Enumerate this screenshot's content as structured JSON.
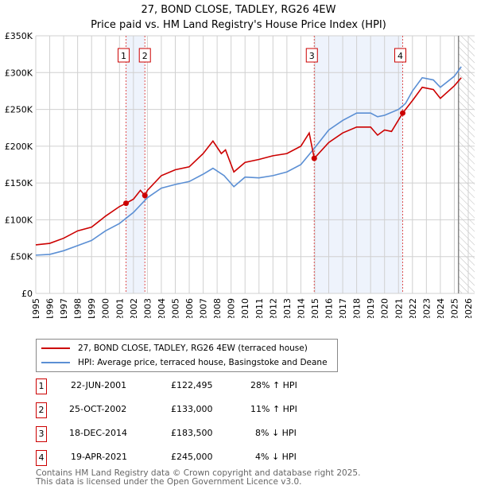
{
  "chart_data": {
    "type": "line",
    "title": "27, BOND CLOSE, TADLEY, RG26 4EW",
    "subtitle": "Price paid vs. HM Land Registry's House Price Index (HPI)",
    "xlim": [
      1995,
      2026
    ],
    "ylim": [
      0,
      350000
    ],
    "x_ticks": [
      "1995",
      "1996",
      "1997",
      "1998",
      "1999",
      "2000",
      "2001",
      "2002",
      "2003",
      "2004",
      "2005",
      "2006",
      "2007",
      "2008",
      "2009",
      "2010",
      "2011",
      "2012",
      "2013",
      "2014",
      "2015",
      "2016",
      "2017",
      "2018",
      "2019",
      "2020",
      "2021",
      "2022",
      "2023",
      "2024",
      "2025",
      "2026"
    ],
    "y_ticks": [
      {
        "v": 0,
        "label": "£0"
      },
      {
        "v": 50000,
        "label": "£50K"
      },
      {
        "v": 100000,
        "label": "£100K"
      },
      {
        "v": 150000,
        "label": "£150K"
      },
      {
        "v": 200000,
        "label": "£200K"
      },
      {
        "v": 250000,
        "label": "£250K"
      },
      {
        "v": 300000,
        "label": "£300K"
      },
      {
        "v": 350000,
        "label": "£350K"
      }
    ],
    "grid": true,
    "series": [
      {
        "name": "27, BOND CLOSE, TADLEY, RG26 4EW (terraced house)",
        "color": "#cc0000",
        "x": [
          1995,
          1996,
          1997,
          1998,
          1999,
          2000,
          2001,
          2001.47,
          2002,
          2002.5,
          2002.82,
          2003,
          2004,
          2005,
          2006,
          2007,
          2007.7,
          2008.3,
          2008.6,
          2009.2,
          2010,
          2011,
          2012,
          2013,
          2014,
          2014.6,
          2014.96,
          2016,
          2017,
          2018,
          2019,
          2019.5,
          2020,
          2020.5,
          2021.3,
          2022,
          2022.7,
          2023.5,
          2024,
          2025,
          2025.5
        ],
        "y": [
          66000,
          68000,
          75000,
          85000,
          90000,
          105000,
          118000,
          122495,
          128000,
          140000,
          133000,
          140000,
          160000,
          168000,
          172000,
          190000,
          207000,
          190000,
          195000,
          165000,
          178000,
          182000,
          187000,
          190000,
          200000,
          218000,
          183500,
          205000,
          218000,
          226000,
          226000,
          215000,
          222000,
          220000,
          245000,
          262000,
          280000,
          277000,
          265000,
          282000,
          293000
        ]
      },
      {
        "name": "HPI: Average price, terraced house, Basingstoke and Deane",
        "color": "#5b8fd4",
        "x": [
          1995,
          1996,
          1997,
          1998,
          1999,
          2000,
          2001,
          2002,
          2003,
          2004,
          2005,
          2006,
          2007,
          2007.7,
          2008.5,
          2009.2,
          2010,
          2011,
          2012,
          2013,
          2014,
          2015,
          2016,
          2017,
          2018,
          2019,
          2019.5,
          2020,
          2021,
          2021.5,
          2022,
          2022.7,
          2023.5,
          2024,
          2025,
          2025.5
        ],
        "y": [
          52000,
          53000,
          58000,
          65000,
          72000,
          85000,
          95000,
          110000,
          130000,
          143000,
          148000,
          152000,
          162000,
          170000,
          160000,
          145000,
          158000,
          157000,
          160000,
          165000,
          175000,
          198000,
          222000,
          235000,
          245000,
          245000,
          240000,
          242000,
          250000,
          258000,
          275000,
          293000,
          290000,
          280000,
          295000,
          308000
        ]
      }
    ],
    "sales": [
      {
        "num": "1",
        "x": 2001.47,
        "date": "22-JUN-2001",
        "price": "£122,495",
        "value": 122495,
        "hpi": "28% ↑ HPI"
      },
      {
        "num": "2",
        "x": 2002.82,
        "date": "25-OCT-2002",
        "price": "£133,000",
        "value": 133000,
        "hpi": "11% ↑ HPI"
      },
      {
        "num": "3",
        "x": 2014.96,
        "date": "18-DEC-2014",
        "price": "£183,500",
        "value": 183500,
        "hpi": "8% ↓ HPI"
      },
      {
        "num": "4",
        "x": 2021.3,
        "date": "19-APR-2021",
        "price": "£245,000",
        "value": 245000,
        "hpi": "4% ↓ HPI"
      }
    ],
    "shaded": [
      [
        2001.47,
        2002.82
      ],
      [
        2014.96,
        2021.3
      ]
    ],
    "forecast_from": 2025.3
  },
  "footer": {
    "line1": "Contains HM Land Registry data © Crown copyright and database right 2025.",
    "line2": "This data is licensed under the Open Government Licence v3.0."
  }
}
